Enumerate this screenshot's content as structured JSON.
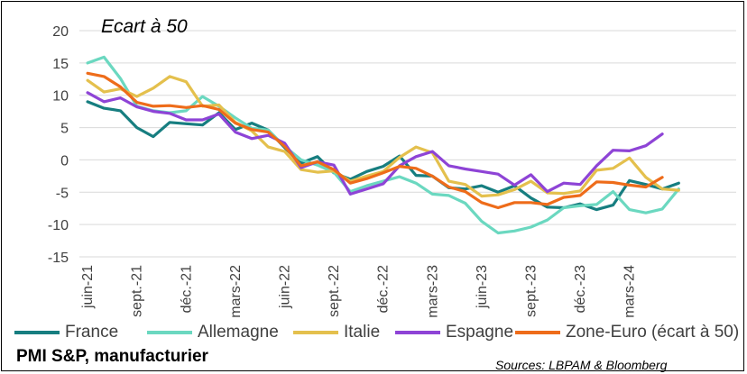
{
  "chart_data": {
    "type": "line",
    "annotation": "Ecart à 50",
    "subtitle": "PMI S&P, manufacturier",
    "source": "Sources: LBPAM & Bloomberg",
    "ylim": [
      -15,
      20
    ],
    "yticks": [
      "20",
      "15",
      "10",
      "5",
      "0",
      "-5",
      "-10",
      "-15"
    ],
    "ytick_values": [
      20,
      15,
      10,
      5,
      0,
      -5,
      -10,
      -15
    ],
    "x_count": 40,
    "xticks": [
      "juin-21",
      "sept.-21",
      "déc.-21",
      "mars-22",
      "juin-22",
      "sept.-22",
      "déc.-22",
      "mars-23",
      "juin-23",
      "sept.-23",
      "déc.-23",
      "mars-24"
    ],
    "xtick_index": [
      0,
      3,
      6,
      9,
      12,
      15,
      18,
      21,
      24,
      27,
      30,
      33
    ],
    "grid": true,
    "legend_position": "bottom",
    "series": [
      {
        "name": "France",
        "color": "#177e80",
        "values": [
          9,
          8,
          7.6,
          5,
          3.6,
          5.8,
          5.6,
          5.4,
          7.3,
          4.7,
          5.7,
          4.6,
          1.9,
          -0.5,
          0.5,
          -2,
          -3,
          -1.8,
          -1,
          0.6,
          -2.4,
          -2.5,
          -4.3,
          -4.5,
          -4,
          -5,
          -4,
          -5.9,
          -7.3,
          -7.4,
          -6.8,
          -7.7,
          -7,
          -3.2,
          -3.8,
          -4.5,
          -3.6
        ]
      },
      {
        "name": "Allemagne",
        "color": "#6bd8c0",
        "values": [
          15,
          15.9,
          12.6,
          8.3,
          7.6,
          7.3,
          7.6,
          9.8,
          8.3,
          6.5,
          4.9,
          4.6,
          2.1,
          0,
          -0.8,
          -1.9,
          -4.9,
          -4,
          -3.3,
          -2.6,
          -3.6,
          -5.3,
          -5.5,
          -6.7,
          -9.5,
          -11.3,
          -11,
          -10.4,
          -9.3,
          -7.4,
          -7.1,
          -6.9,
          -4.9,
          -7.7,
          -8.2,
          -7.6,
          -4.5
        ]
      },
      {
        "name": "Italie",
        "color": "#e4c04d",
        "values": [
          12.3,
          10.5,
          11,
          9.8,
          11.1,
          12.9,
          12.1,
          8.3,
          8.5,
          5.8,
          4.5,
          2,
          1.3,
          -1.5,
          -1.9,
          -1.7,
          -3.3,
          -2.5,
          -1.8,
          0.4,
          2,
          1.1,
          -3.3,
          -3.8,
          -5.6,
          -5.4,
          -4.6,
          -3.3,
          -5.1,
          -5.2,
          -4.8,
          -1.6,
          -1.3,
          0.3,
          -2.7,
          -4.5,
          -4.7
        ]
      },
      {
        "name": "Espagne",
        "color": "#8e44d6",
        "values": [
          10.4,
          9,
          9.6,
          8.2,
          7.5,
          7.2,
          6.2,
          6.2,
          7.1,
          4.3,
          3.3,
          3.8,
          2.6,
          -1.2,
          -0.3,
          -0.8,
          -5.3,
          -4.5,
          -3.7,
          -0.9,
          0.5,
          1.3,
          -0.9,
          -1.4,
          -1.8,
          -2.2,
          -3.9,
          -2.3,
          -4.9,
          -3.6,
          -3.8,
          -0.9,
          1.5,
          1.4,
          2.2,
          4
        ]
      },
      {
        "name": "Zone-Euro (écart à 50)",
        "color": "#ee6c1a",
        "values": [
          13.4,
          12.9,
          11.3,
          8.9,
          8.3,
          8.4,
          8.1,
          8.4,
          7.8,
          5.7,
          4.7,
          4.3,
          2.1,
          -0.9,
          -0.3,
          -1.5,
          -3.6,
          -2.9,
          -2,
          -1,
          -1.3,
          -2.5,
          -4.2,
          -4.9,
          -6.6,
          -7.4,
          -6.6,
          -6.6,
          -6.9,
          -5.8,
          -5.5,
          -3.4,
          -3.5,
          -3.9,
          -4.2,
          -2.7
        ]
      }
    ]
  }
}
